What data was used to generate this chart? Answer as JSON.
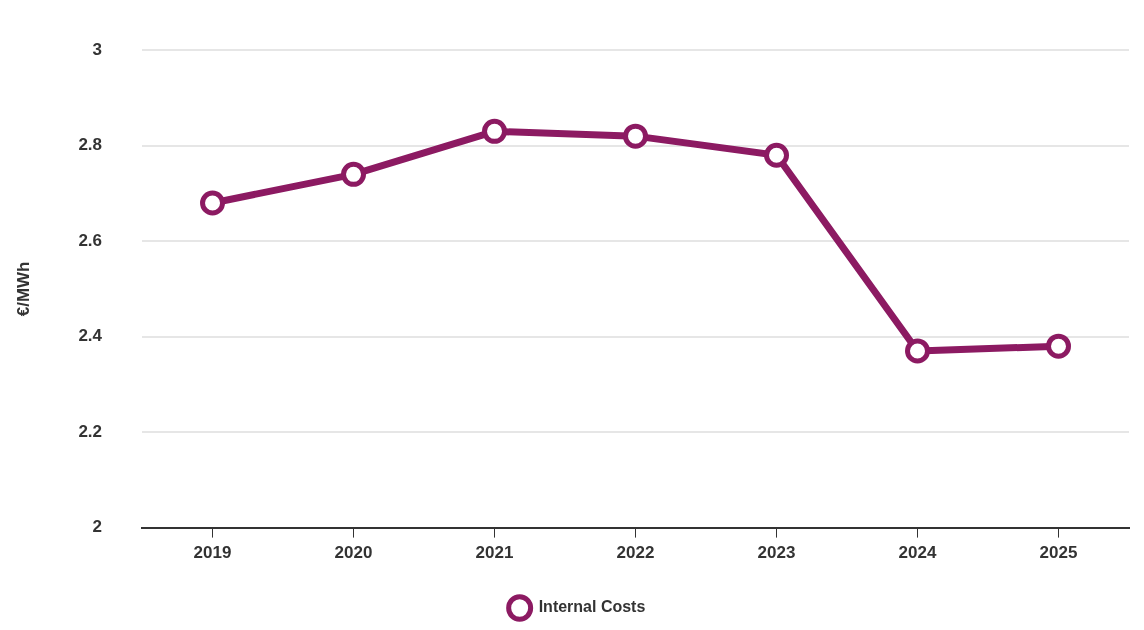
{
  "chart_data": {
    "type": "line",
    "ylabel": "€/MWh",
    "categories": [
      "2019",
      "2020",
      "2021",
      "2022",
      "2023",
      "2024",
      "2025"
    ],
    "series": [
      {
        "name": "Internal Costs",
        "color": "#8c1a62",
        "values": [
          2.68,
          2.74,
          2.83,
          2.82,
          2.78,
          2.37,
          2.38
        ]
      }
    ],
    "ylim": [
      2,
      3
    ],
    "yticks": [
      2,
      2.2,
      2.4,
      2.6,
      2.8,
      3
    ],
    "grid": "y",
    "legend": "bottom",
    "marker": "circle",
    "line_style": "solid"
  }
}
